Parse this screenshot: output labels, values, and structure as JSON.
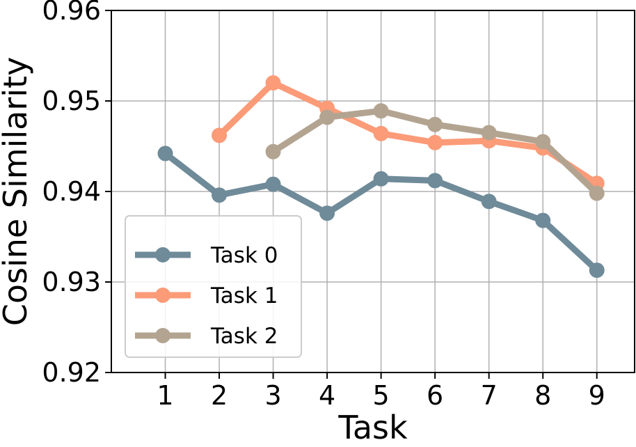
{
  "chart_data": {
    "type": "line",
    "xlabel": "Task",
    "ylabel": "Cosine Similarity",
    "xticks": [
      1,
      2,
      3,
      4,
      5,
      6,
      7,
      8,
      9
    ],
    "xlim": [
      0.0,
      9.7
    ],
    "yticks": [
      "0.92",
      "0.93",
      "0.94",
      "0.95",
      "0.96"
    ],
    "ylim": [
      0.92,
      0.96
    ],
    "grid": true,
    "legend_position": "lower-left",
    "series": [
      {
        "name": "Task 0",
        "color": "#6f8b99",
        "x": [
          1,
          2,
          3,
          4,
          5,
          6,
          7,
          8,
          9
        ],
        "y": [
          0.9442,
          0.9396,
          0.9408,
          0.9376,
          0.9414,
          0.9412,
          0.9389,
          0.9368,
          0.9313
        ]
      },
      {
        "name": "Task 1",
        "color": "#fb9b78",
        "x": [
          2,
          3,
          4,
          5,
          6,
          7,
          8,
          9
        ],
        "y": [
          0.9462,
          0.952,
          0.9492,
          0.9464,
          0.9454,
          0.9456,
          0.9448,
          0.9409
        ]
      },
      {
        "name": "Task 2",
        "color": "#b3a491",
        "x": [
          3,
          4,
          5,
          6,
          7,
          8,
          9
        ],
        "y": [
          0.9444,
          0.9482,
          0.9489,
          0.9474,
          0.9465,
          0.9455,
          0.9398
        ]
      }
    ]
  }
}
